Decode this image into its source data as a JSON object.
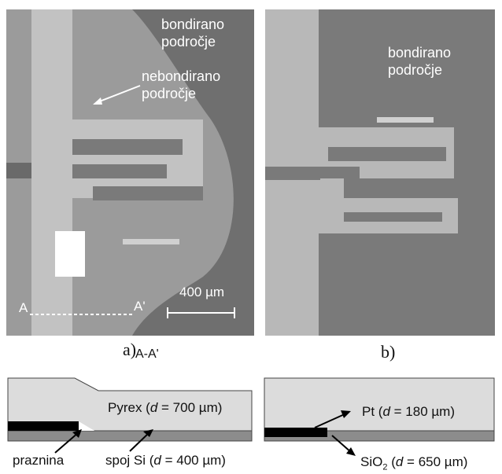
{
  "panel_a": {
    "bonded_label_line1": "bondirano",
    "bonded_label_line2": "področje",
    "unbonded_label_line1": "nebondirano",
    "unbonded_label_line2": "področje",
    "point_a": "A",
    "point_a_prime": "A'",
    "scale_text": "400 µm",
    "caption": "a)"
  },
  "panel_b": {
    "bonded_label_line1": "bondirano",
    "bonded_label_line2": "področje",
    "caption": "b)"
  },
  "cross_section": {
    "section_label": "A-A'",
    "pyrex_label_prefix": "Pyrex (",
    "pyrex_label_var": "d",
    "pyrex_label_suffix": " = 700 µm)",
    "gap_label": "praznina",
    "joint_label_prefix": "spoj Si (",
    "joint_label_var": "d",
    "joint_label_suffix": " = 400 µm)",
    "pt_label_prefix": "Pt (",
    "pt_label_var": "d",
    "pt_label_suffix": " = 180 µm)",
    "sio2_label_prefix": "SiO",
    "sio2_label_sub": "2",
    "sio2_label_open": " (",
    "sio2_label_var": "d",
    "sio2_label_suffix": " = 650 µm)"
  },
  "colors": {
    "photo_dark": "#6e6e6e",
    "photo_light": "#a9a9a9",
    "electrode": "#c6c6c6",
    "pyrex": "#d9d9d9",
    "silicon": "#8c8c8c",
    "metal": "#000000"
  }
}
